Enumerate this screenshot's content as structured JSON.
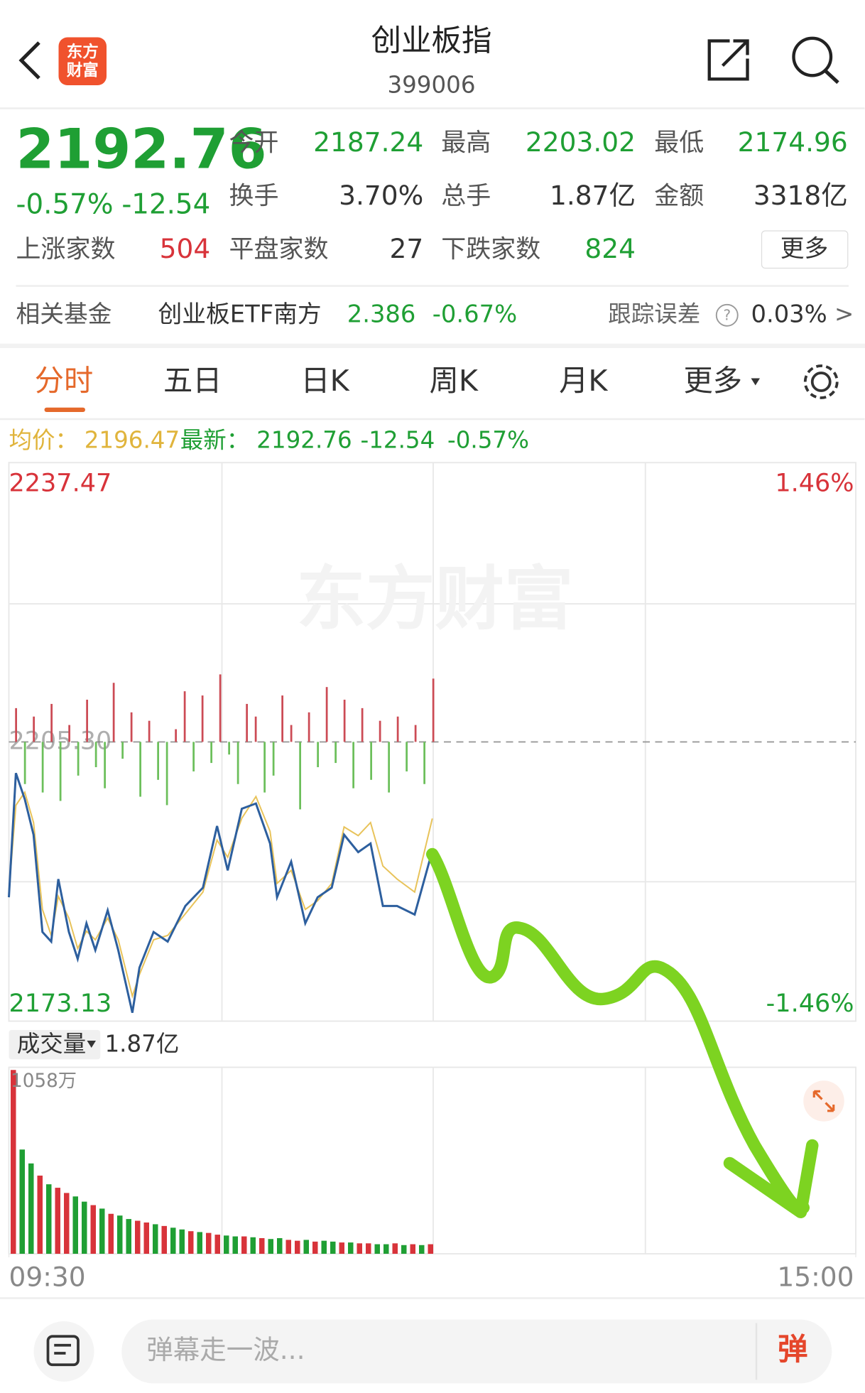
{
  "header": {
    "title": "创业板指",
    "code": "399006",
    "logo_lines": [
      "东方",
      "财富"
    ]
  },
  "quote": {
    "price": "2192.76",
    "change_pct": "-0.57%",
    "change": "-12.54",
    "stats": [
      [
        "今开",
        "2187.24"
      ],
      [
        "最高",
        "2203.02"
      ],
      [
        "最低",
        "2174.96"
      ],
      [
        "换手",
        "3.70%"
      ],
      [
        "总手",
        "1.87亿"
      ],
      [
        "金额",
        "3318亿"
      ],
      [
        "上涨家数",
        "504"
      ],
      [
        "平盘家数",
        "27"
      ],
      [
        "下跌家数",
        "824"
      ]
    ],
    "more": "更多"
  },
  "fund": {
    "label": "相关基金",
    "name": "创业板ETF南方",
    "price": "2.386",
    "change": "-0.67%",
    "tracking_label": "跟踪误差",
    "help": "?",
    "tracking_value": "0.03%",
    "arrow": ">"
  },
  "tabs": [
    "分时",
    "五日",
    "日K",
    "周K",
    "月K",
    "更多"
  ],
  "chart_data": {
    "type": "line",
    "avg_label": "均价：",
    "avg_value": "2196.47",
    "latest_label": "最新：",
    "latest_value": "2192.76",
    "latest_change": "-12.54",
    "latest_pct": "-0.57%",
    "watermark": "东方财富",
    "xlim": [
      0,
      240
    ],
    "xticks": [
      {
        "value": 0,
        "label": "09:30"
      },
      {
        "value": 240,
        "label": "15:00"
      }
    ],
    "ylim": [
      2173.13,
      2237.47
    ],
    "yticks": [
      2237.47,
      {
        "value": 2205.3,
        "label": "2205.30"
      },
      2173.13
    ],
    "y2lim": [
      -1.46,
      1.46
    ],
    "y2ticks": [
      {
        "value": 1.46,
        "label": "1.46%"
      },
      {
        "value": -1.46,
        "label": "-1.46%"
      }
    ],
    "x": [
      0,
      2,
      4.5,
      7,
      9.5,
      12,
      14,
      17,
      19.5,
      22,
      24.5,
      28,
      31,
      35,
      37,
      41,
      45,
      50,
      55,
      59,
      62,
      66,
      70,
      74,
      76,
      80,
      84,
      87.5,
      91.5,
      95,
      99,
      102.5,
      106,
      110,
      115,
      120
    ],
    "series": [
      {
        "color": "#2d5f9e",
        "values": [
          2187.4,
          2201.7,
          2198.7,
          2194.6,
          2183.4,
          2182.3,
          2189.5,
          2183.4,
          2180.3,
          2184.4,
          2181.3,
          2185.9,
          2181.3,
          2174.1,
          2179.3,
          2183.4,
          2182.3,
          2186.4,
          2188.5,
          2195.6,
          2190.5,
          2197.6,
          2198.2,
          2193.6,
          2187.4,
          2191.5,
          2184.4,
          2187.4,
          2188.5,
          2194.6,
          2192.6,
          2193.6,
          2186.4,
          2186.4,
          2185.4,
          2192.76
        ]
      },
      {
        "color": "#e8c35a",
        "values": [
          2188.0,
          2198.0,
          2199.5,
          2196.0,
          2186.0,
          2183.0,
          2187.5,
          2185.0,
          2181.5,
          2183.5,
          2182.5,
          2185.0,
          2182.5,
          2176.0,
          2178.5,
          2182.5,
          2183.0,
          2185.5,
          2188.0,
          2194.0,
          2192.0,
          2196.5,
          2199.0,
          2195.0,
          2189.0,
          2190.5,
          2186.0,
          2187.0,
          2189.0,
          2195.5,
          2194.5,
          2196.0,
          2191.0,
          2189.5,
          2188.0,
          2196.47
        ]
      }
    ],
    "breadth": {
      "ylim": [
        -100,
        100
      ],
      "values": [
        40,
        -50,
        30,
        -60,
        45,
        -70,
        20,
        -40,
        50,
        -30,
        -55,
        70,
        -20,
        35,
        -65,
        25,
        -45,
        -75,
        15,
        60,
        -35,
        55,
        -25,
        80,
        -15,
        -50,
        45,
        30,
        -60,
        -40,
        55,
        20,
        -80,
        35,
        -30,
        65,
        -25,
        50,
        -55,
        40,
        -45,
        25,
        -60,
        30,
        -35,
        20,
        -50,
        75
      ]
    },
    "volume": {
      "label": "成交量",
      "total": "1.87亿",
      "max_label": "1058万",
      "ylim": [
        0,
        1058
      ],
      "values": [
        1058,
        600,
        520,
        450,
        400,
        380,
        350,
        330,
        300,
        280,
        260,
        230,
        220,
        200,
        190,
        180,
        170,
        160,
        150,
        140,
        130,
        125,
        120,
        110,
        105,
        100,
        100,
        95,
        90,
        85,
        90,
        80,
        75,
        80,
        70,
        75,
        70,
        65,
        65,
        60,
        60,
        55,
        55,
        60,
        50,
        55,
        50,
        55
      ],
      "colors": [
        "#d8333a",
        "#1f9f34",
        "#1f9f34",
        "#d8333a",
        "#1f9f34",
        "#d8333a",
        "#d8333a",
        "#1f9f34",
        "#1f9f34",
        "#d8333a",
        "#1f9f34",
        "#d8333a",
        "#1f9f34",
        "#1f9f34",
        "#d8333a",
        "#d8333a",
        "#1f9f34",
        "#d8333a",
        "#1f9f34",
        "#1f9f34",
        "#d8333a",
        "#1f9f34",
        "#d8333a",
        "#d8333a",
        "#1f9f34",
        "#1f9f34",
        "#d8333a",
        "#1f9f34",
        "#d8333a",
        "#1f9f34",
        "#1f9f34",
        "#d8333a",
        "#d8333a",
        "#1f9f34",
        "#d8333a",
        "#1f9f34",
        "#1f9f34",
        "#d8333a",
        "#1f9f34",
        "#d8333a",
        "#d8333a",
        "#1f9f34",
        "#1f9f34",
        "#d8333a",
        "#1f9f34",
        "#d8333a",
        "#1f9f34",
        "#d8333a"
      ]
    }
  },
  "input": {
    "placeholder": "弹幕走一波...",
    "button": "弹"
  }
}
